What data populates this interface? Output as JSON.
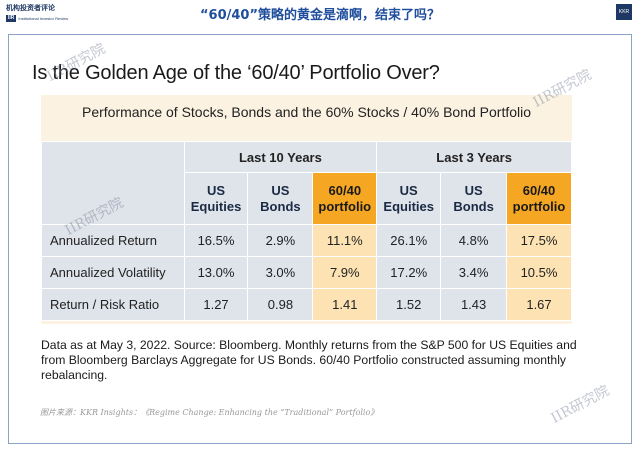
{
  "header": {
    "logo_cn": "机构投资者评论",
    "logo_badge": "IIR",
    "logo_en": "Institutional Investor Review",
    "headline": "“60/40”策略的黄金是滴啊，结束了吗？",
    "corner_label": "KKR"
  },
  "slide": {
    "title": "Is the Golden Age of the ‘60/40’ Portfolio Over?",
    "subtitle": "Performance of Stocks, Bonds and the 60% Stocks / 40% Bond Portfolio",
    "groups": [
      "Last 10 Years",
      "Last 3 Years"
    ],
    "columns": [
      {
        "line1": "US",
        "line2": "Equities",
        "highlight": false
      },
      {
        "line1": "US",
        "line2": "Bonds",
        "highlight": false
      },
      {
        "line1": "60/40",
        "line2": "portfolio",
        "highlight": true
      },
      {
        "line1": "US",
        "line2": "Equities",
        "highlight": false
      },
      {
        "line1": "US",
        "line2": "Bonds",
        "highlight": false
      },
      {
        "line1": "60/40",
        "line2": "portfolio",
        "highlight": true
      }
    ],
    "rows": [
      {
        "label": "Annualized Return",
        "values": [
          "16.5%",
          "2.9%",
          "11.1%",
          "26.1%",
          "4.8%",
          "17.5%"
        ]
      },
      {
        "label": "Annualized Volatility",
        "values": [
          "13.0%",
          "3.0%",
          "7.9%",
          "17.2%",
          "3.4%",
          "10.5%"
        ]
      },
      {
        "label": "Return / Risk Ratio",
        "values": [
          "1.27",
          "0.98",
          "1.41",
          "1.52",
          "1.43",
          "1.67"
        ]
      }
    ],
    "note": "Data as at May 3, 2022. Source: Bloomberg. Monthly returns from the S&P 500 for US Equities and from Bloomberg Barclays Aggregate for US Bonds. 60/40 Portfolio constructed assuming monthly rebalancing."
  },
  "source_caption": "图片来源：KKR Insights：《Regime Change: Enhancing the “Traditional” Portfolio》",
  "watermark": "IIR研究院",
  "colors": {
    "headline": "#1f4e9c",
    "highlight": "#f5a623",
    "highlight_light": "#fde3b3",
    "table_bg": "#dfe3ea",
    "panel_bg": "#fbf2e2"
  }
}
